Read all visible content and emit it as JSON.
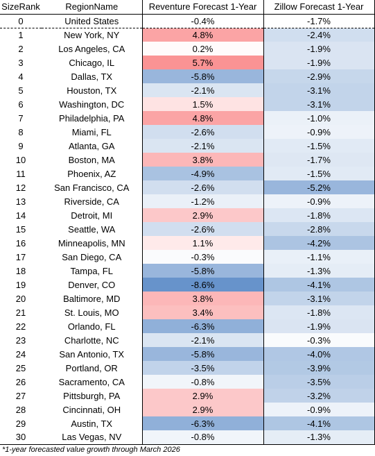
{
  "chart_data": {
    "type": "table",
    "columns": [
      "SizeRank",
      "RegionName",
      "Reventure Forecast 1-Year",
      "Zillow Forecast 1-Year"
    ],
    "rows": [
      {
        "rank": "0",
        "region": "United States",
        "reventure": "-0.4%",
        "zillow": "-1.7%"
      },
      {
        "rank": "1",
        "region": "New York, NY",
        "reventure": "4.8%",
        "zillow": "-2.4%"
      },
      {
        "rank": "2",
        "region": "Los Angeles, CA",
        "reventure": "0.2%",
        "zillow": "-1.9%"
      },
      {
        "rank": "3",
        "region": "Chicago, IL",
        "reventure": "5.7%",
        "zillow": "-1.9%"
      },
      {
        "rank": "4",
        "region": "Dallas, TX",
        "reventure": "-5.8%",
        "zillow": "-2.9%"
      },
      {
        "rank": "5",
        "region": "Houston, TX",
        "reventure": "-2.1%",
        "zillow": "-3.1%"
      },
      {
        "rank": "6",
        "region": "Washington, DC",
        "reventure": "1.5%",
        "zillow": "-3.1%"
      },
      {
        "rank": "7",
        "region": "Philadelphia, PA",
        "reventure": "4.8%",
        "zillow": "-1.0%"
      },
      {
        "rank": "8",
        "region": "Miami, FL",
        "reventure": "-2.6%",
        "zillow": "-0.9%"
      },
      {
        "rank": "9",
        "region": "Atlanta, GA",
        "reventure": "-2.1%",
        "zillow": "-1.5%"
      },
      {
        "rank": "10",
        "region": "Boston, MA",
        "reventure": "3.8%",
        "zillow": "-1.7%"
      },
      {
        "rank": "11",
        "region": "Phoenix, AZ",
        "reventure": "-4.9%",
        "zillow": "-1.5%"
      },
      {
        "rank": "12",
        "region": "San Francisco, CA",
        "reventure": "-2.6%",
        "zillow": "-5.2%"
      },
      {
        "rank": "13",
        "region": "Riverside, CA",
        "reventure": "-1.2%",
        "zillow": "-0.9%"
      },
      {
        "rank": "14",
        "region": "Detroit, MI",
        "reventure": "2.9%",
        "zillow": "-1.8%"
      },
      {
        "rank": "15",
        "region": "Seattle, WA",
        "reventure": "-2.6%",
        "zillow": "-2.8%"
      },
      {
        "rank": "16",
        "region": "Minneapolis, MN",
        "reventure": "1.1%",
        "zillow": "-4.2%"
      },
      {
        "rank": "17",
        "region": "San Diego, CA",
        "reventure": "-0.3%",
        "zillow": "-1.1%"
      },
      {
        "rank": "18",
        "region": "Tampa, FL",
        "reventure": "-5.8%",
        "zillow": "-1.3%"
      },
      {
        "rank": "19",
        "region": "Denver, CO",
        "reventure": "-8.6%",
        "zillow": "-4.1%"
      },
      {
        "rank": "20",
        "region": "Baltimore, MD",
        "reventure": "3.8%",
        "zillow": "-3.1%"
      },
      {
        "rank": "21",
        "region": "St. Louis, MO",
        "reventure": "3.4%",
        "zillow": "-1.8%"
      },
      {
        "rank": "22",
        "region": "Orlando, FL",
        "reventure": "-6.3%",
        "zillow": "-1.9%"
      },
      {
        "rank": "23",
        "region": "Charlotte, NC",
        "reventure": "-2.1%",
        "zillow": "-0.3%"
      },
      {
        "rank": "24",
        "region": "San Antonio, TX",
        "reventure": "-5.8%",
        "zillow": "-4.0%"
      },
      {
        "rank": "25",
        "region": "Portland, OR",
        "reventure": "-3.5%",
        "zillow": "-3.9%"
      },
      {
        "rank": "26",
        "region": "Sacramento, CA",
        "reventure": "-0.8%",
        "zillow": "-3.5%"
      },
      {
        "rank": "27",
        "region": "Pittsburgh, PA",
        "reventure": "2.9%",
        "zillow": "-3.2%"
      },
      {
        "rank": "28",
        "region": "Cincinnati, OH",
        "reventure": "2.9%",
        "zillow": "-0.9%"
      },
      {
        "rank": "29",
        "region": "Austin, TX",
        "reventure": "-6.3%",
        "zillow": "-4.1%"
      },
      {
        "rank": "30",
        "region": "Las Vegas, NV",
        "reventure": "-0.8%",
        "zillow": "-1.3%"
      }
    ],
    "footnote": "*1-year forecasted value growth through March 2026",
    "colors": {
      "positive": "#f8696b",
      "negative": "#5a8ac6",
      "neutral": "#ffffff"
    }
  }
}
